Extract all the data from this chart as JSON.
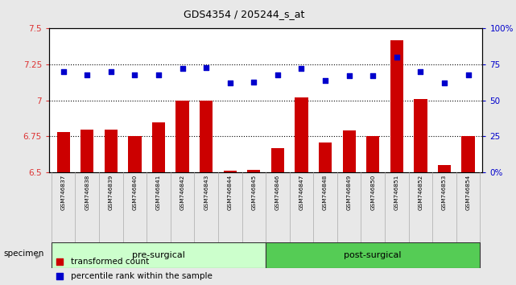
{
  "title": "GDS4354 / 205244_s_at",
  "categories": [
    "GSM746837",
    "GSM746838",
    "GSM746839",
    "GSM746840",
    "GSM746841",
    "GSM746842",
    "GSM746843",
    "GSM746844",
    "GSM746845",
    "GSM746846",
    "GSM746847",
    "GSM746848",
    "GSM746849",
    "GSM746850",
    "GSM746851",
    "GSM746852",
    "GSM746853",
    "GSM746854"
  ],
  "bar_values": [
    6.78,
    6.8,
    6.8,
    6.75,
    6.85,
    7.0,
    7.0,
    6.51,
    6.52,
    6.67,
    7.02,
    6.71,
    6.79,
    6.75,
    7.42,
    7.01,
    6.55,
    6.75
  ],
  "dot_values": [
    70,
    68,
    70,
    68,
    68,
    72,
    73,
    62,
    63,
    68,
    72,
    64,
    67,
    67,
    80,
    70,
    62,
    68
  ],
  "bar_color": "#cc0000",
  "dot_color": "#0000cc",
  "ylim_left": [
    6.5,
    7.5
  ],
  "ylim_right": [
    0,
    100
  ],
  "yticks_left": [
    6.5,
    6.75,
    7.0,
    7.25,
    7.5
  ],
  "ytick_labels_left": [
    "6.5",
    "6.75",
    "7",
    "7.25",
    "7.5"
  ],
  "yticks_right": [
    0,
    25,
    50,
    75,
    100
  ],
  "ytick_labels_right": [
    "0%",
    "25",
    "50",
    "75",
    "100%"
  ],
  "grid_values": [
    6.75,
    7.0,
    7.25
  ],
  "pre_surgical_count": 9,
  "group_labels": [
    "pre-surgical",
    "post-surgical"
  ],
  "legend_items": [
    "transformed count",
    "percentile rank within the sample"
  ],
  "specimen_label": "specimen",
  "fig_bg": "#e8e8e8",
  "plot_bg": "#ffffff",
  "xtick_bg": "#c8c8c8",
  "pre_color": "#ccffcc",
  "post_color": "#55cc55",
  "tick_color_left": "#dd3333",
  "tick_color_right": "#0000cc"
}
